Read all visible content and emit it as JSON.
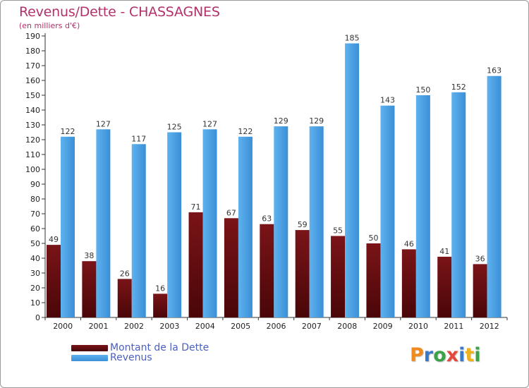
{
  "chart_data": {
    "type": "bar",
    "title": "Revenus/Dette - CHASSAGNES",
    "subtitle": "(en milliers d'€)",
    "categories": [
      "2000",
      "2001",
      "2002",
      "2003",
      "2004",
      "2005",
      "2006",
      "2007",
      "2008",
      "2009",
      "2010",
      "2011",
      "2012"
    ],
    "series": [
      {
        "name": "Montant de la Dette",
        "color": "#6b0e12",
        "values": [
          49,
          38,
          26,
          16,
          71,
          67,
          63,
          59,
          55,
          50,
          46,
          41,
          36
        ]
      },
      {
        "name": "Revenus",
        "color": "#4aa3e4",
        "values": [
          122,
          127,
          117,
          125,
          127,
          122,
          129,
          129,
          185,
          143,
          150,
          152,
          163
        ]
      }
    ],
    "ylim": [
      0,
      190
    ],
    "ytick_step": 10,
    "grid": false,
    "legend_position": "bottom-left"
  },
  "logo": {
    "letters": [
      "P",
      "r",
      "o",
      "x",
      "i",
      "t",
      "i"
    ]
  }
}
